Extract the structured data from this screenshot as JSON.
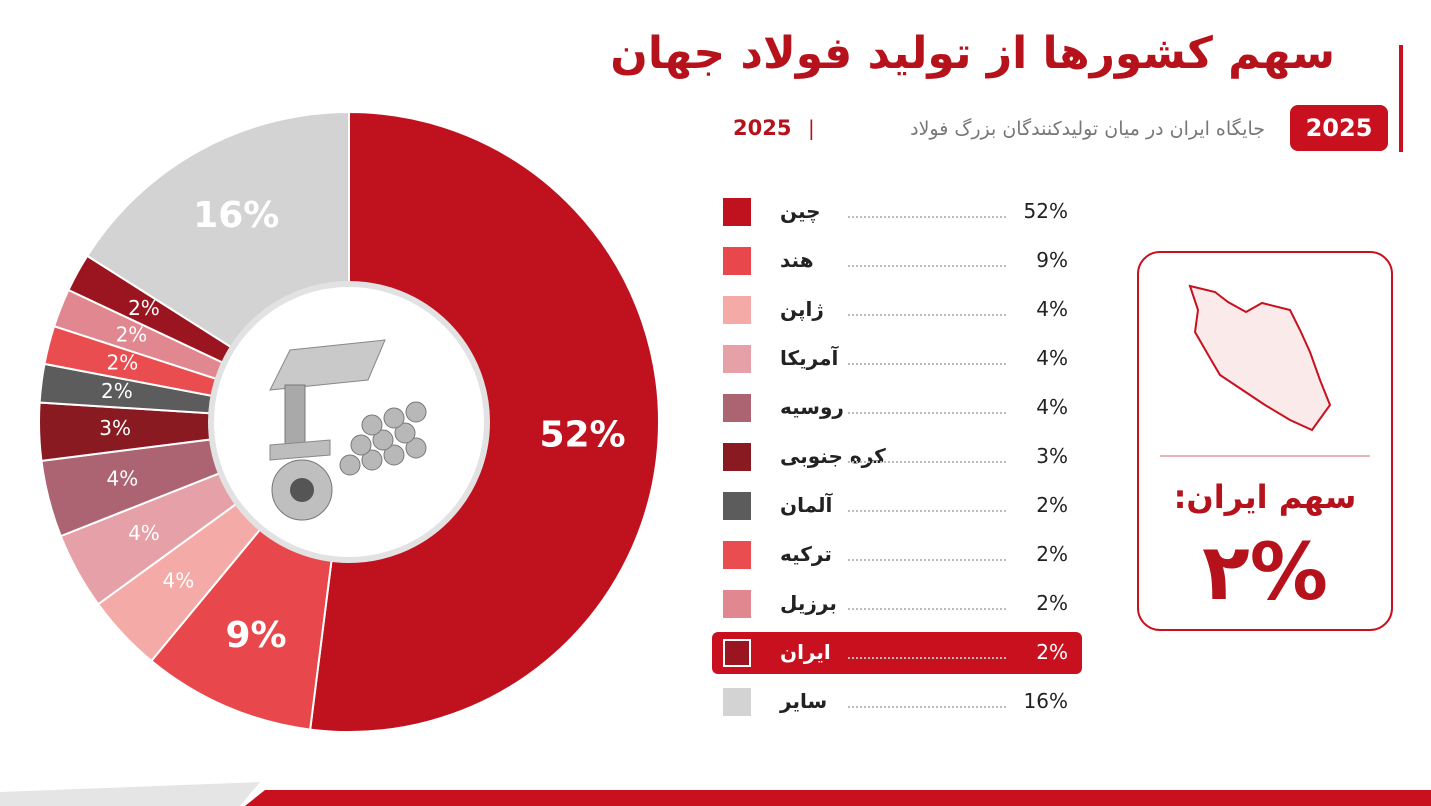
{
  "header": {
    "title": "سهم کشورها از تولید فولاد جهان",
    "badge": "2025",
    "subtitle": "جایگاه ایران در میان تولیدکنندگان بزرگ فولاد",
    "year": "2025"
  },
  "card": {
    "label": "سهم ایران:",
    "value": "۲%"
  },
  "chart_data": {
    "type": "pie",
    "donut": true,
    "categories": [
      "چین",
      "هند",
      "ژاپن",
      "آمریکا",
      "روسیه",
      "کره جنوبی",
      "آلمان",
      "ترکیه",
      "برزیل",
      "ایران",
      "سایر"
    ],
    "values": [
      52,
      9,
      4,
      4,
      4,
      3,
      2,
      2,
      2,
      2,
      16
    ],
    "value_labels": [
      "52%",
      "9%",
      "4%",
      "4%",
      "4%",
      "3%",
      "2%",
      "2%",
      "2%",
      "2%",
      "16%"
    ],
    "colors": [
      "#c0111f",
      "#e8474b",
      "#f4aaa7",
      "#e6a0a7",
      "#ad6472",
      "#8a1a22",
      "#5c5c5c",
      "#ea4d50",
      "#e0878f",
      "#9b1520",
      "#d3d3d3"
    ],
    "highlight_index": 9
  }
}
